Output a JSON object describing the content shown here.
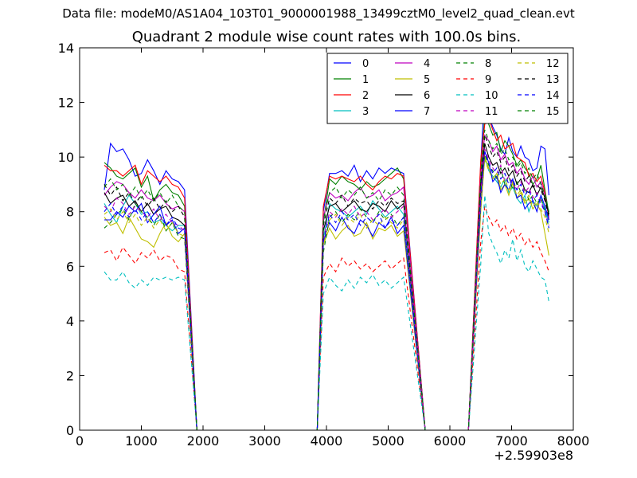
{
  "header": {
    "data_file": "Data file: modeM0/AS1A04_103T01_9000001988_13499cztM0_level2_quad_clean.evt"
  },
  "chart_data": {
    "type": "line",
    "title": "Quadrant 2 module wise count rates with 100.0s bins.",
    "xlabel": "",
    "ylabel": "",
    "x_offset_label": "+2.59903e8",
    "xlim": [
      0,
      8000
    ],
    "ylim": [
      0,
      14
    ],
    "x_ticks": [
      0,
      1000,
      2000,
      3000,
      4000,
      5000,
      6000,
      7000,
      8000
    ],
    "y_ticks": [
      0,
      2,
      4,
      6,
      8,
      10,
      12,
      14
    ],
    "grid": false,
    "legend_location": "top-right",
    "legend_columns": 4,
    "series": [
      {
        "name": "0",
        "color": "#0000ff",
        "dash": "solid",
        "seg1": [
          8.8,
          10.5,
          10.2,
          10.3,
          9.9,
          9.3,
          9.4,
          9.9,
          9.5,
          9.0,
          9.5,
          9.2,
          9.1,
          8.8
        ],
        "seg2": [
          8.0,
          9.4,
          9.4,
          9.5,
          9.3,
          9.7,
          9.1,
          9.5,
          9.2,
          9.6,
          9.4,
          9.6,
          9.5,
          9.4
        ],
        "seg3": [
          9.8,
          12.4,
          11.5,
          11.1,
          10.8,
          10.3,
          10.1,
          10.7,
          10.2,
          10.0,
          10.4,
          10.0,
          9.9,
          9.5,
          9.6,
          10.4,
          10.3,
          8.6
        ]
      },
      {
        "name": "1",
        "color": "#008000",
        "dash": "solid",
        "seg1": [
          9.8,
          9.6,
          9.3,
          9.2,
          9.4,
          9.6,
          8.9,
          9.3,
          8.4,
          8.8,
          9.0,
          8.7,
          8.6,
          8.2
        ],
        "seg2": [
          7.6,
          9.2,
          9.0,
          9.3,
          9.1,
          9.0,
          8.8,
          9.1,
          8.9,
          9.0,
          9.2,
          9.4,
          9.6,
          9.2
        ],
        "seg3": [
          9.6,
          11.5,
          11.2,
          10.8,
          10.9,
          10.2,
          10.6,
          10.4,
          10.1,
          9.7,
          9.9,
          9.6,
          9.4,
          9.0,
          9.2,
          9.7,
          8.8,
          7.9
        ]
      },
      {
        "name": "2",
        "color": "#ff0000",
        "dash": "solid",
        "seg1": [
          9.7,
          9.5,
          9.5,
          9.3,
          9.5,
          9.7,
          9.0,
          9.5,
          9.3,
          9.1,
          9.3,
          9.0,
          8.9,
          8.5
        ],
        "seg2": [
          8.2,
          9.3,
          9.2,
          9.3,
          9.2,
          9.1,
          9.3,
          9.0,
          8.8,
          9.1,
          9.3,
          9.2,
          9.4,
          9.3
        ],
        "seg3": [
          9.9,
          11.2,
          11.4,
          11.0,
          10.6,
          10.8,
          10.3,
          10.4,
          10.5,
          10.0,
          9.9,
          9.8,
          9.3,
          9.4,
          9.1,
          9.3,
          8.7,
          7.7
        ]
      },
      {
        "name": "3",
        "color": "#00bfbf",
        "dash": "solid",
        "seg1": [
          8.3,
          7.9,
          7.6,
          8.2,
          8.6,
          8.3,
          7.9,
          8.0,
          7.6,
          7.7,
          7.5,
          7.3,
          7.5,
          7.5
        ],
        "seg2": [
          7.0,
          8.3,
          8.1,
          8.0,
          7.8,
          8.0,
          8.2,
          7.9,
          8.4,
          8.1,
          7.8,
          8.0,
          8.2,
          7.9
        ],
        "seg3": [
          8.6,
          10.0,
          9.5,
          9.3,
          9.1,
          8.9,
          9.2,
          8.7,
          8.9,
          8.5,
          8.3,
          8.6,
          8.0,
          8.4,
          8.2,
          8.5,
          8.1,
          7.6
        ]
      },
      {
        "name": "4",
        "color": "#bf00bf",
        "dash": "solid",
        "seg1": [
          8.6,
          8.9,
          9.1,
          9.0,
          8.7,
          8.5,
          8.8,
          8.5,
          8.4,
          8.6,
          8.3,
          8.1,
          8.2,
          8.0
        ],
        "seg2": [
          7.8,
          8.7,
          8.5,
          8.6,
          8.4,
          8.7,
          8.9,
          8.5,
          8.6,
          8.8,
          8.4,
          8.6,
          8.7,
          8.9
        ],
        "seg3": [
          9.4,
          10.8,
          10.6,
          10.2,
          10.4,
          9.9,
          10.1,
          9.7,
          9.8,
          9.4,
          9.6,
          9.2,
          9.0,
          9.3,
          8.9,
          9.1,
          8.6,
          7.8
        ]
      },
      {
        "name": "5",
        "color": "#bfbf00",
        "dash": "solid",
        "seg1": [
          7.8,
          7.5,
          7.6,
          7.2,
          7.8,
          7.4,
          7.0,
          6.9,
          6.7,
          7.2,
          7.6,
          7.1,
          6.9,
          7.2
        ],
        "seg2": [
          6.8,
          7.4,
          7.0,
          7.3,
          7.5,
          7.1,
          7.2,
          7.6,
          7.0,
          7.4,
          7.3,
          7.5,
          7.1,
          7.3
        ],
        "seg3": [
          8.0,
          10.0,
          9.6,
          9.2,
          9.4,
          8.8,
          9.0,
          8.6,
          9.1,
          8.5,
          8.7,
          8.3,
          8.5,
          8.1,
          8.3,
          8.0,
          7.2,
          6.4
        ]
      },
      {
        "name": "6",
        "color": "#000000",
        "dash": "solid",
        "seg1": [
          8.7,
          8.3,
          8.5,
          8.6,
          8.2,
          8.4,
          8.0,
          8.3,
          7.9,
          8.1,
          8.2,
          7.8,
          7.7,
          7.5
        ],
        "seg2": [
          7.3,
          8.2,
          8.3,
          8.0,
          8.2,
          8.4,
          8.1,
          8.0,
          8.3,
          8.2,
          8.0,
          8.4,
          8.1,
          8.3
        ],
        "seg3": [
          9.0,
          10.5,
          10.0,
          9.7,
          9.8,
          9.4,
          9.6,
          9.3,
          9.5,
          9.0,
          9.2,
          8.8,
          8.7,
          9.0,
          8.6,
          8.9,
          8.5,
          7.9
        ]
      },
      {
        "name": "7",
        "color": "#0000ff",
        "dash": "solid",
        "seg1": [
          7.7,
          7.7,
          8.0,
          7.8,
          8.2,
          8.0,
          8.3,
          7.6,
          7.9,
          8.2,
          7.5,
          7.7,
          7.2,
          7.4
        ],
        "seg2": [
          6.9,
          7.6,
          7.3,
          7.8,
          7.4,
          7.2,
          7.7,
          7.5,
          7.1,
          7.6,
          7.4,
          7.8,
          7.2,
          7.5
        ],
        "seg3": [
          8.3,
          10.2,
          9.8,
          9.1,
          9.3,
          8.7,
          9.0,
          8.8,
          9.2,
          8.5,
          8.6,
          8.1,
          8.3,
          8.4,
          8.0,
          8.6,
          8.2,
          7.7
        ]
      },
      {
        "name": "8",
        "color": "#008000",
        "dash": "dashed",
        "seg1": [
          7.4,
          7.6,
          7.9,
          8.1,
          7.7,
          8.3,
          8.0,
          7.8,
          7.5,
          7.9,
          7.3,
          7.6,
          7.1,
          7.0
        ],
        "seg2": [
          6.5,
          7.8,
          8.0,
          7.6,
          7.9,
          7.7,
          8.1,
          7.8,
          7.6,
          8.0,
          7.7,
          7.9,
          7.5,
          7.8
        ],
        "seg3": [
          8.5,
          10.1,
          9.7,
          9.5,
          9.2,
          9.6,
          9.0,
          9.3,
          8.8,
          9.1,
          8.7,
          8.9,
          8.4,
          8.6,
          8.3,
          8.5,
          8.0,
          7.4
        ]
      },
      {
        "name": "9",
        "color": "#ff0000",
        "dash": "dashed",
        "seg1": [
          6.5,
          6.6,
          6.2,
          6.7,
          6.4,
          6.1,
          6.5,
          6.3,
          6.6,
          6.2,
          6.4,
          6.3,
          5.9,
          5.8
        ],
        "seg2": [
          5.6,
          6.1,
          5.8,
          6.3,
          6.0,
          6.2,
          5.9,
          6.1,
          5.8,
          6.0,
          6.2,
          5.9,
          6.1,
          6.3
        ],
        "seg3": [
          6.9,
          8.2,
          7.8,
          7.5,
          7.7,
          7.3,
          7.5,
          7.1,
          7.4,
          7.0,
          7.2,
          6.8,
          7.0,
          6.7,
          6.9,
          6.5,
          6.2,
          5.8
        ]
      },
      {
        "name": "10",
        "color": "#00bfbf",
        "dash": "dashed",
        "seg1": [
          5.8,
          5.5,
          5.5,
          5.8,
          5.4,
          5.2,
          5.5,
          5.3,
          5.6,
          5.5,
          5.6,
          5.5,
          5.6,
          5.5
        ],
        "seg2": [
          5.0,
          5.6,
          5.3,
          5.1,
          5.5,
          5.2,
          5.6,
          5.4,
          5.7,
          5.3,
          5.5,
          5.2,
          5.4,
          5.6
        ],
        "seg3": [
          6.1,
          8.6,
          7.2,
          6.8,
          6.5,
          6.1,
          6.6,
          6.3,
          7.0,
          6.2,
          6.6,
          6.0,
          5.8,
          6.2,
          5.9,
          5.6,
          5.5,
          4.7
        ]
      },
      {
        "name": "11",
        "color": "#bf00bf",
        "dash": "dashed",
        "seg1": [
          8.2,
          8.0,
          8.5,
          8.3,
          7.9,
          8.2,
          8.0,
          7.8,
          8.1,
          7.7,
          7.9,
          7.6,
          7.5,
          7.3
        ],
        "seg2": [
          7.0,
          8.0,
          7.8,
          8.1,
          7.9,
          8.2,
          7.8,
          8.0,
          7.7,
          7.9,
          8.1,
          7.8,
          8.0,
          8.2
        ],
        "seg3": [
          8.7,
          10.3,
          9.9,
          9.6,
          9.4,
          9.7,
          9.1,
          9.3,
          9.0,
          8.8,
          9.1,
          8.7,
          8.9,
          8.5,
          8.7,
          8.4,
          8.0,
          7.5
        ]
      },
      {
        "name": "12",
        "color": "#bfbf00",
        "dash": "dashed",
        "seg1": [
          7.9,
          8.1,
          7.7,
          8.0,
          7.6,
          7.9,
          7.5,
          7.8,
          7.4,
          7.7,
          7.3,
          7.6,
          7.2,
          7.1
        ],
        "seg2": [
          6.8,
          7.7,
          7.9,
          7.5,
          7.8,
          7.6,
          7.9,
          7.4,
          7.7,
          7.5,
          7.8,
          7.6,
          7.4,
          7.7
        ],
        "seg3": [
          8.4,
          9.9,
          9.5,
          9.2,
          9.4,
          9.0,
          9.2,
          8.8,
          9.0,
          8.6,
          8.8,
          8.4,
          8.6,
          8.2,
          8.4,
          8.1,
          7.8,
          7.2
        ]
      },
      {
        "name": "13",
        "color": "#000000",
        "dash": "dashed",
        "seg1": [
          9.0,
          8.6,
          8.9,
          8.4,
          8.7,
          8.3,
          8.6,
          8.2,
          8.5,
          8.1,
          8.4,
          8.0,
          8.2,
          7.8
        ],
        "seg2": [
          7.5,
          8.5,
          8.3,
          8.6,
          8.2,
          8.5,
          8.3,
          8.4,
          8.1,
          8.4,
          8.2,
          8.5,
          8.3,
          8.4
        ],
        "seg3": [
          9.2,
          10.8,
          10.4,
          10.0,
          10.2,
          9.8,
          10.0,
          9.5,
          9.7,
          9.3,
          9.5,
          9.1,
          9.3,
          8.9,
          9.0,
          8.8,
          8.4,
          7.8
        ]
      },
      {
        "name": "14",
        "color": "#0000ff",
        "dash": "dashed",
        "seg1": [
          8.0,
          8.3,
          7.9,
          8.2,
          7.8,
          8.1,
          7.7,
          8.0,
          7.6,
          7.9,
          7.5,
          7.8,
          7.4,
          7.3
        ],
        "seg2": [
          6.9,
          7.9,
          7.6,
          8.0,
          7.7,
          7.9,
          7.5,
          7.8,
          7.6,
          7.9,
          7.4,
          7.7,
          7.5,
          7.8
        ],
        "seg3": [
          8.6,
          10.2,
          9.8,
          9.4,
          9.6,
          9.2,
          9.4,
          9.0,
          9.2,
          8.8,
          9.0,
          8.6,
          8.8,
          8.4,
          8.6,
          8.3,
          8.0,
          7.4
        ]
      },
      {
        "name": "15",
        "color": "#008000",
        "dash": "dashed",
        "seg1": [
          8.9,
          9.2,
          8.8,
          9.0,
          8.6,
          8.9,
          8.5,
          8.8,
          8.4,
          8.7,
          8.3,
          8.6,
          8.2,
          8.0
        ],
        "seg2": [
          7.7,
          8.7,
          8.9,
          8.5,
          8.8,
          8.6,
          8.9,
          8.5,
          8.7,
          8.4,
          8.8,
          8.6,
          8.9,
          8.6
        ],
        "seg3": [
          9.3,
          11.0,
          10.6,
          10.3,
          10.5,
          10.1,
          10.3,
          9.9,
          10.0,
          9.6,
          9.8,
          9.4,
          9.6,
          9.2,
          9.4,
          9.0,
          8.6,
          8.0
        ]
      }
    ]
  }
}
